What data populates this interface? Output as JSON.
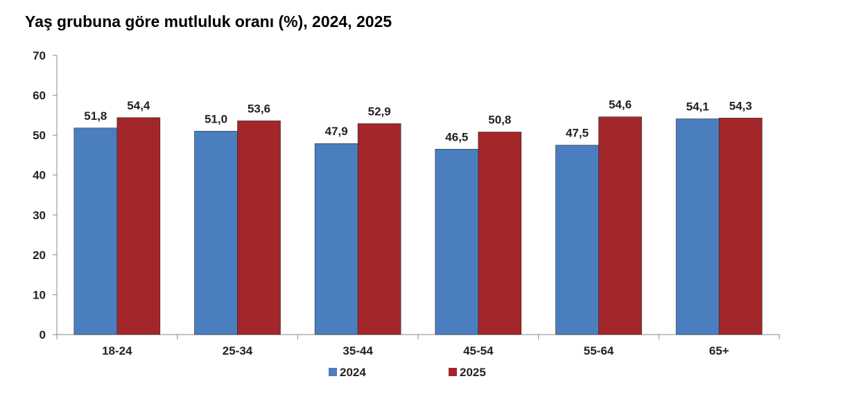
{
  "chart_data": {
    "type": "bar",
    "title": "Yaş grubuna göre mutluluk oranı (%), 2024, 2025",
    "xlabel": "",
    "ylabel": "",
    "ylim": [
      0,
      70
    ],
    "yticks": [
      "0",
      "10",
      "20",
      "30",
      "40",
      "50",
      "60",
      "70"
    ],
    "categories": [
      "18-24",
      "25-34",
      "35-44",
      "45-54",
      "55-64",
      "65+"
    ],
    "series": [
      {
        "name": "2024",
        "color": "#4a7ebf",
        "values": [
          51.8,
          51.0,
          47.9,
          46.5,
          47.5,
          54.1
        ],
        "labels": [
          "51,8",
          "51,0",
          "47,9",
          "46,5",
          "47,5",
          "54,1"
        ]
      },
      {
        "name": "2025",
        "color": "#a3262a",
        "values": [
          54.4,
          53.6,
          52.9,
          50.8,
          54.6,
          54.3
        ],
        "labels": [
          "54,4",
          "53,6",
          "52,9",
          "50,8",
          "54,6",
          "54,3"
        ]
      }
    ],
    "grid": false,
    "legend_position": "bottom"
  }
}
